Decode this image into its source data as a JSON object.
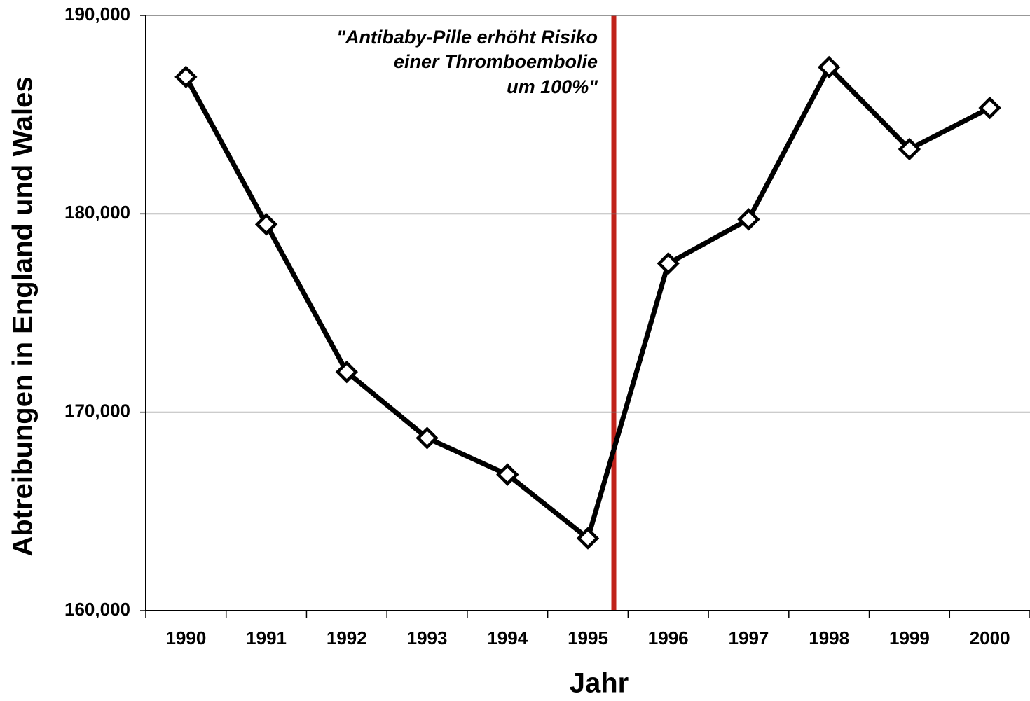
{
  "chart_data": {
    "type": "line",
    "xlabel": "Jahr",
    "ylabel": "Abtreibungen in England und Wales",
    "annotation": [
      "\"Antibaby-Pille erhöht Risiko",
      "einer Thromboembolie",
      "um 100%\""
    ],
    "categories": [
      "1990",
      "1991",
      "1992",
      "1993",
      "1994",
      "1995",
      "1996",
      "1997",
      "1998",
      "1999",
      "2000"
    ],
    "values": [
      186900,
      179470,
      172030,
      168700,
      166860,
      163650,
      177500,
      179720,
      187390,
      183260,
      185340
    ],
    "color": "#000000",
    "ylim": [
      160000,
      190000
    ],
    "yticks": [
      {
        "value": 160000,
        "label": "160,000"
      },
      {
        "value": 170000,
        "label": "170,000"
      },
      {
        "value": 180000,
        "label": "180,000"
      },
      {
        "value": 190000,
        "label": "190,000"
      }
    ],
    "grid": true
  }
}
